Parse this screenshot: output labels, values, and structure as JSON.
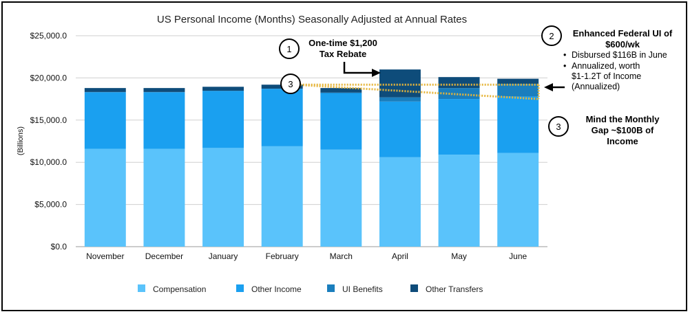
{
  "colors": {
    "compensation": "#5ac3fb",
    "other_income": "#1aa0f0",
    "ui_benefits": "#1a7ebd",
    "other_transfers": "#0e4c7a",
    "grid": "#cfcfcf",
    "gap_lines": "#e6b53a"
  },
  "chart_data": {
    "type": "bar",
    "stacked": true,
    "title": "US Personal Income (Months) Seasonally Adjusted at Annual Rates",
    "ylabel": "(Billions)",
    "xlabel": "",
    "categories": [
      "November",
      "December",
      "January",
      "February",
      "March",
      "April",
      "May",
      "June"
    ],
    "ylim": [
      0,
      25000
    ],
    "yticks": [
      0,
      5000,
      10000,
      15000,
      20000,
      25000
    ],
    "ytick_labels": [
      "$0.0",
      "$5,000.0",
      "$10,000.0",
      "$15,000.0",
      "$20,000.0",
      "$25,000.0"
    ],
    "grid": true,
    "legend_position": "bottom",
    "series": [
      {
        "name": "Compensation",
        "color_key": "compensation",
        "values": [
          11600,
          11600,
          11700,
          11900,
          11500,
          10600,
          10900,
          11100
        ]
      },
      {
        "name": "Other Income",
        "color_key": "other_income",
        "values": [
          6700,
          6700,
          6750,
          6800,
          6700,
          6600,
          6600,
          6700
        ]
      },
      {
        "name": "UI Benefits",
        "color_key": "ui_benefits",
        "values": [
          30,
          30,
          30,
          30,
          60,
          500,
          1300,
          1500
        ]
      },
      {
        "name": "Other Transfers",
        "color_key": "other_transfers",
        "values": [
          470,
          470,
          470,
          470,
          540,
          3300,
          1300,
          600
        ]
      }
    ]
  },
  "annotations": {
    "n1": {
      "number": "1",
      "line1": "One-time $1,200",
      "line2": "Tax Rebate"
    },
    "n2": {
      "number": "2",
      "title1": "Enhanced Federal UI of",
      "title2": "$600/wk",
      "bullet1": "Disbursed $116B in June",
      "bullet2_l1": "Annualized, worth",
      "bullet2_l2": "$1-1.2T of Income",
      "bullet2_l3": "(Annualized)",
      "bullet_char": "•"
    },
    "n3a": {
      "number": "3"
    },
    "n3b": {
      "number": "3",
      "line1": "Mind the Monthly",
      "line2": "Gap ~$100B of",
      "line3": "Income"
    },
    "gap_lines": {
      "from_category": "February",
      "to_category": "June",
      "from_value": 19200,
      "to_upper": 19200,
      "to_lower": 17500
    }
  }
}
